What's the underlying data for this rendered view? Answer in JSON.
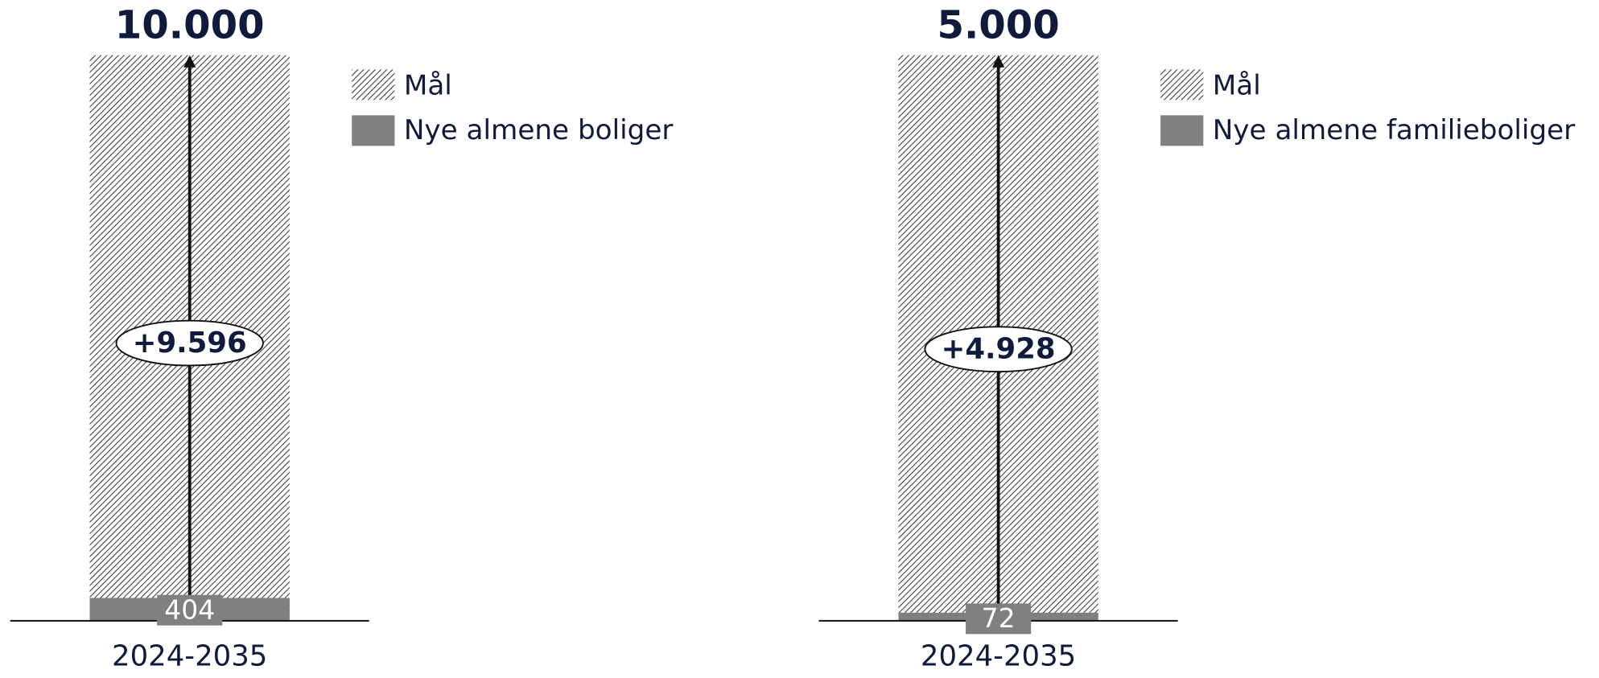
{
  "chart_data": [
    {
      "type": "bar",
      "categories": [
        "2024-2035"
      ],
      "series": [
        {
          "name": "Mål",
          "color": "#333333",
          "values": [
            10000
          ],
          "value_labels": [
            "10.000"
          ]
        },
        {
          "name": "Nye almene boliger",
          "color": "#808080",
          "values": [
            404
          ]
        }
      ],
      "annotation": "+9.596"
    },
    {
      "type": "bar",
      "categories": [
        "2024-2035"
      ],
      "series": [
        {
          "name": "Mål",
          "color": "#333333",
          "values": [
            5000
          ],
          "value_labels": [
            "5.000"
          ]
        },
        {
          "name": "Nye almene familieboliger",
          "color": "#808080",
          "values": [
            72
          ]
        }
      ],
      "annotation": "+4.928"
    }
  ]
}
